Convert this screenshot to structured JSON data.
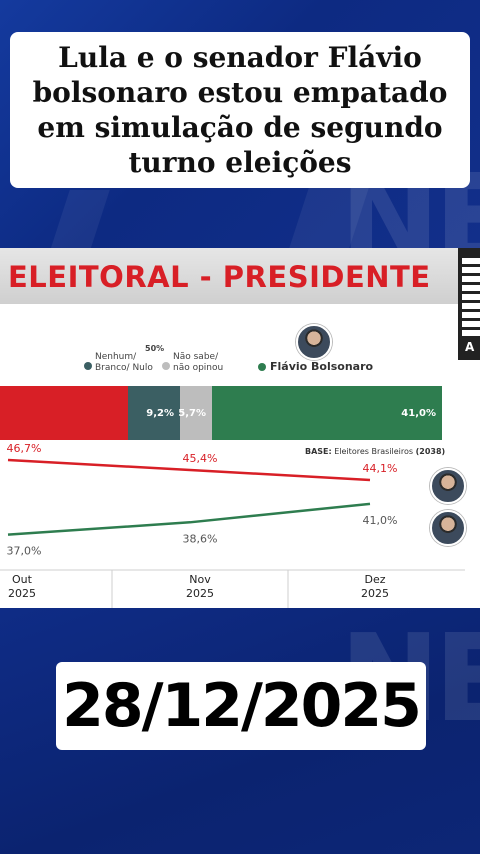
{
  "headline": "Lula e o senador Flávio bolsonaro estou empatado em simulação de segundo turno eleições",
  "card": {
    "title": "ELEITORAL - PRESIDENTE",
    "qr_letter": "A",
    "legend": {
      "nenhum_label": "Nenhum/ Branco/ Nulo",
      "fifty_label": "50%",
      "nao_sabe_label": "Não sabe/ não opinou",
      "flavio_label": "Flávio Bolsonaro"
    },
    "bar": {
      "nenhum_value": "9,2%",
      "nao_sabe_value": "5,7%",
      "flavio_value": "41,0%"
    },
    "base_label": "BASE:",
    "base_text": " Eleitores Brasileiros ",
    "base_count": "(2038)"
  },
  "colors": {
    "lula": "#d81f26",
    "flavio": "#2e7d4f",
    "nenhum": "#3b5f63",
    "nao_sabe": "#bdbdbd",
    "headline_red": "#d81f26"
  },
  "chart_data": {
    "type": "line",
    "categories": [
      "Out 2025",
      "Nov 2025",
      "Dez 2025"
    ],
    "series": [
      {
        "values": [
          46.7,
          45.4,
          44.1
        ],
        "labels": [
          "46,7%",
          "45,4%",
          "44,1%"
        ]
      },
      {
        "values": [
          37.0,
          38.6,
          41.0
        ],
        "labels": [
          "37,0%",
          "38,6%",
          "41,0%"
        ]
      }
    ],
    "ylim": [
      35,
      48
    ],
    "xlabels": [
      {
        "month": "Out",
        "year": "2025"
      },
      {
        "month": "Nov",
        "year": "2025"
      },
      {
        "month": "Dez",
        "year": "2025"
      }
    ]
  },
  "date": "28/12/2025"
}
